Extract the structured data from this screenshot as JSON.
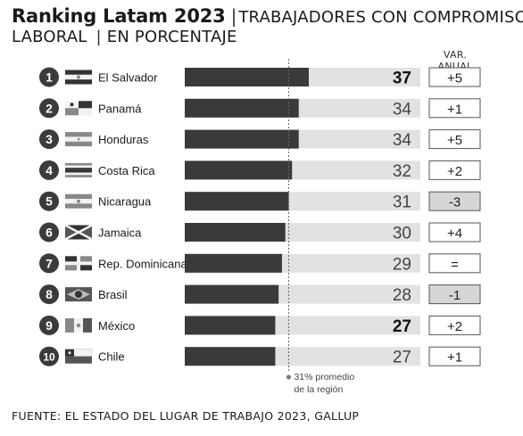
{
  "header": {
    "title_bold": "Ranking Latam 2023",
    "title_separator": "|",
    "title_rest": "TRABAJADORES CON COMPROMISO",
    "title_line2_a": "LABORAL",
    "title_line2_sep": "|",
    "title_line2_b": "EN PORCENTAJE",
    "change_column_label": "VAR. ANUAL"
  },
  "chart_data": {
    "type": "bar",
    "orientation": "horizontal",
    "xlim": [
      0,
      100
    ],
    "reference_line": {
      "value": 31,
      "label_line1": "31% promedio",
      "label_line2": "de la región"
    },
    "rows": [
      {
        "rank": "1",
        "country": "El Salvador",
        "flag": "el-salvador-flag-icon",
        "value": 37,
        "value_label": "37",
        "bold": true,
        "change": "+5",
        "change_negative": false
      },
      {
        "rank": "2",
        "country": "Panamá",
        "flag": "panama-flag-icon",
        "value": 34,
        "value_label": "34",
        "bold": false,
        "change": "+1",
        "change_negative": false
      },
      {
        "rank": "3",
        "country": "Honduras",
        "flag": "honduras-flag-icon",
        "value": 34,
        "value_label": "34",
        "bold": false,
        "change": "+5",
        "change_negative": false
      },
      {
        "rank": "4",
        "country": "Costa Rica",
        "flag": "costa-rica-flag-icon",
        "value": 32,
        "value_label": "32",
        "bold": false,
        "change": "+2",
        "change_negative": false
      },
      {
        "rank": "5",
        "country": "Nicaragua",
        "flag": "nicaragua-flag-icon",
        "value": 31,
        "value_label": "31",
        "bold": false,
        "change": "-3",
        "change_negative": true
      },
      {
        "rank": "6",
        "country": "Jamaica",
        "flag": "jamaica-flag-icon",
        "value": 30,
        "value_label": "30",
        "bold": false,
        "change": "+4",
        "change_negative": false
      },
      {
        "rank": "7",
        "country": "Rep. Dominicana",
        "flag": "dominican-republic-flag-icon",
        "value": 29,
        "value_label": "29",
        "bold": false,
        "change": "=",
        "change_negative": false
      },
      {
        "rank": "8",
        "country": "Brasil",
        "flag": "brazil-flag-icon",
        "value": 28,
        "value_label": "28",
        "bold": false,
        "change": "-1",
        "change_negative": true
      },
      {
        "rank": "9",
        "country": "México",
        "flag": "mexico-flag-icon",
        "value": 27,
        "value_label": "27",
        "bold": true,
        "change": "+2",
        "change_negative": false
      },
      {
        "rank": "10",
        "country": "Chile",
        "flag": "chile-flag-icon",
        "value": 27,
        "value_label": "27",
        "bold": false,
        "change": "+1",
        "change_negative": false
      }
    ]
  },
  "colors": {
    "bar_fill": "#3a3a3a",
    "bar_track": "#e2e2e2",
    "rank_circle": "#3b3b3b",
    "negative_badge": "#d6d6d6",
    "reference_line": "#666666"
  },
  "footer": {
    "source": "FUENTE: EL ESTADO DEL LUGAR DE TRABAJO 2023, GALLUP"
  }
}
